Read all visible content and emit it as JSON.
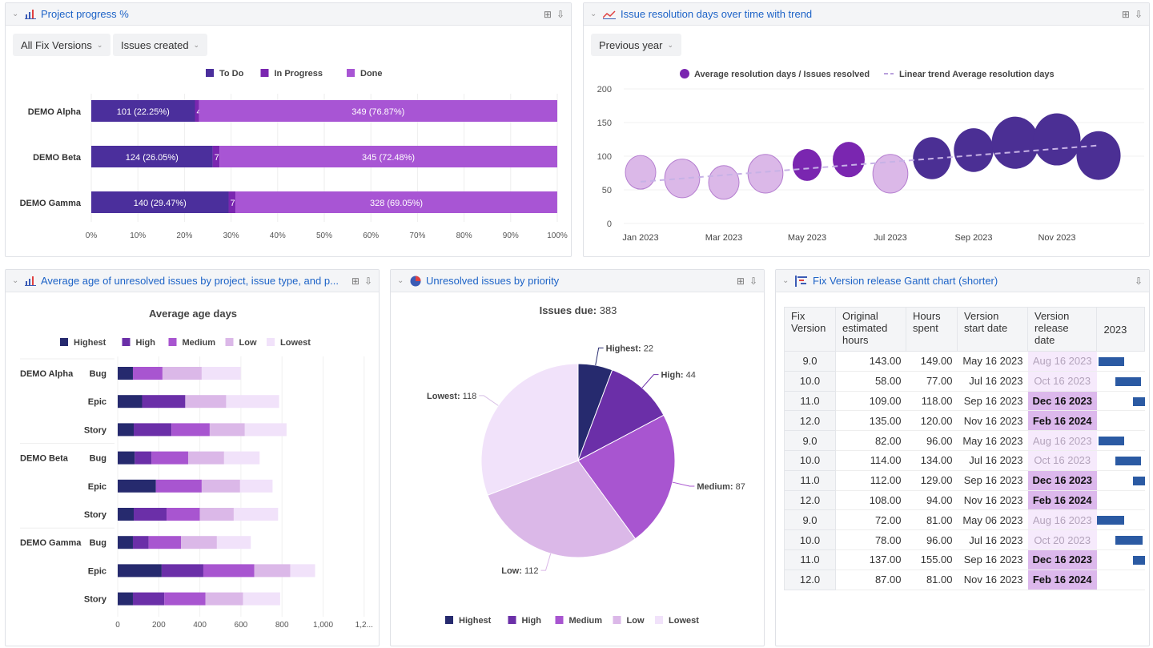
{
  "colors": {
    "title_link": "#1d63c7",
    "todo": "#4b2f9c",
    "in_progress": "#7a26b0",
    "done": "#a855d4",
    "highest": "#262a6e",
    "high": "#6b2fa8",
    "medium": "#a855d0",
    "low": "#dbb8e8",
    "lowest": "#f1e2fa",
    "gantt_bar": "#2b5aa3"
  },
  "panels": {
    "progress": {
      "title": "Project progress %",
      "icon": "bar-chart-icon",
      "filters": [
        "All Fix Versions",
        "Issues created"
      ]
    },
    "resolution": {
      "title": "Issue resolution days over time with trend",
      "icon": "line-chart-icon",
      "filters": [
        "Previous year"
      ]
    },
    "age": {
      "title": "Average age of unresolved issues by project, issue type, and p...",
      "icon": "bar-chart-icon"
    },
    "priority": {
      "title": "Unresolved issues by priority",
      "icon": "pie-chart-icon"
    },
    "gantt": {
      "title": "Fix Version release Gantt chart (shorter)",
      "icon": "gantt-icon"
    }
  },
  "chart_data": [
    {
      "type": "bar",
      "stacked": true,
      "orientation": "horizontal",
      "legend": [
        "To Do",
        "In Progress",
        "Done"
      ],
      "legend_placement": "top",
      "categories": [
        "DEMO Alpha",
        "DEMO Beta",
        "DEMO Gamma"
      ],
      "series": [
        {
          "name": "To Do",
          "values": [
            22.25,
            26.05,
            29.47
          ],
          "labels": [
            "101 (22.25%)",
            "124 (26.05%)",
            "140 (29.47%)"
          ]
        },
        {
          "name": "In Progress",
          "values": [
            0.88,
            1.47,
            1.47
          ],
          "labels": [
            "4 (0.88%)",
            "7 (1.47%)",
            "7 (1.47%)"
          ]
        },
        {
          "name": "Done",
          "values": [
            76.87,
            72.48,
            69.05
          ],
          "labels": [
            "349 (76.87%)",
            "345 (72.48%)",
            "328 (69.05%)"
          ]
        }
      ],
      "xticks": [
        "0%",
        "10%",
        "20%",
        "30%",
        "40%",
        "50%",
        "60%",
        "70%",
        "80%",
        "90%",
        "100%"
      ],
      "xlim": [
        0,
        100
      ]
    },
    {
      "type": "scatter",
      "bubble": true,
      "legend": [
        "Average resolution days / Issues resolved",
        "Linear trend Average resolution days"
      ],
      "legend_placement": "top",
      "x": [
        "Jan 2023",
        "Feb 2023",
        "Mar 2023",
        "Apr 2023",
        "May 2023",
        "Jun 2023",
        "Jul 2023",
        "Aug 2023",
        "Sep 2023",
        "Oct 2023",
        "Nov 2023",
        "Dec 2023"
      ],
      "xticks": [
        "Jan 2023",
        "Mar 2023",
        "May 2023",
        "Jul 2023",
        "Sep 2023",
        "Nov 2023"
      ],
      "y": [
        76,
        67,
        61,
        74,
        87,
        95,
        74,
        97,
        109,
        120,
        125,
        101
      ],
      "size": [
        40,
        46,
        40,
        46,
        38,
        42,
        46,
        50,
        52,
        62,
        62,
        58
      ],
      "color_group": [
        "light",
        "light",
        "light",
        "light",
        "mid",
        "mid",
        "light",
        "dark",
        "dark",
        "dark",
        "dark",
        "dark"
      ],
      "trend": [
        62,
        116
      ],
      "ylim": [
        0,
        200
      ],
      "yticks": [
        0,
        50,
        100,
        150,
        200
      ],
      "grid": true
    },
    {
      "type": "bar",
      "stacked": true,
      "orientation": "horizontal",
      "title": "Average age days",
      "legend": [
        "Highest",
        "High",
        "Medium",
        "Low",
        "Lowest"
      ],
      "legend_placement": "top",
      "groups": [
        "DEMO Alpha",
        "DEMO Beta",
        "DEMO Gamma"
      ],
      "categories": [
        "Bug",
        "Epic",
        "Story"
      ],
      "rows": [
        [
          74,
          0,
          144,
          191,
          190
        ],
        [
          119,
          210,
          0,
          199,
          258
        ],
        [
          78,
          184,
          186,
          171,
          203
        ],
        [
          83,
          82,
          178,
          175,
          173
        ],
        [
          186,
          0,
          223,
          187,
          158
        ],
        [
          78,
          160,
          162,
          165,
          216
        ],
        [
          74,
          77,
          157,
          175,
          165
        ],
        [
          214,
          203,
          248,
          175,
          121
        ],
        [
          74,
          153,
          200,
          183,
          181
        ]
      ],
      "xticks": [
        "0",
        "200",
        "400",
        "600",
        "800",
        "1,000",
        "1,2..."
      ],
      "xlim": [
        0,
        1200
      ],
      "grid": true
    },
    {
      "type": "pie",
      "title_label": "Issues due:",
      "title_value": "383",
      "labels": [
        "Highest",
        "High",
        "Medium",
        "Low",
        "Lowest"
      ],
      "values": [
        22,
        44,
        87,
        112,
        118
      ],
      "legend_placement": "bottom"
    },
    {
      "type": "table",
      "columns": [
        "Fix Version",
        "Original estimated hours",
        "Hours spent",
        "Version start date",
        "Version release date",
        "2023"
      ],
      "rows": [
        [
          "9.0",
          "143.00",
          "149.00",
          "May 16 2023",
          "Aug 16 2023"
        ],
        [
          "10.0",
          "58.00",
          "77.00",
          "Jul 16 2023",
          "Oct 16 2023"
        ],
        [
          "11.0",
          "109.00",
          "118.00",
          "Sep 16 2023",
          "Dec 16 2023"
        ],
        [
          "12.0",
          "135.00",
          "120.00",
          "Nov 16 2023",
          "Feb 16 2024"
        ],
        [
          "9.0",
          "82.00",
          "96.00",
          "May 16 2023",
          "Aug 16 2023"
        ],
        [
          "10.0",
          "114.00",
          "134.00",
          "Jul 16 2023",
          "Oct 16 2023"
        ],
        [
          "11.0",
          "112.00",
          "129.00",
          "Sep 16 2023",
          "Dec 16 2023"
        ],
        [
          "12.0",
          "108.00",
          "94.00",
          "Nov 16 2023",
          "Feb 16 2024"
        ],
        [
          "9.0",
          "72.00",
          "81.00",
          "May 06 2023",
          "Aug 16 2023"
        ],
        [
          "10.0",
          "78.00",
          "96.00",
          "Jul 16 2023",
          "Oct 20 2023"
        ],
        [
          "11.0",
          "137.00",
          "155.00",
          "Sep 16 2023",
          "Dec 16 2023"
        ],
        [
          "12.0",
          "87.00",
          "81.00",
          "Nov 16 2023",
          "Feb 16 2024"
        ]
      ],
      "release_status": [
        "past",
        "past",
        "future",
        "future",
        "past",
        "past",
        "future",
        "future",
        "past",
        "past",
        "future",
        "future"
      ]
    }
  ]
}
